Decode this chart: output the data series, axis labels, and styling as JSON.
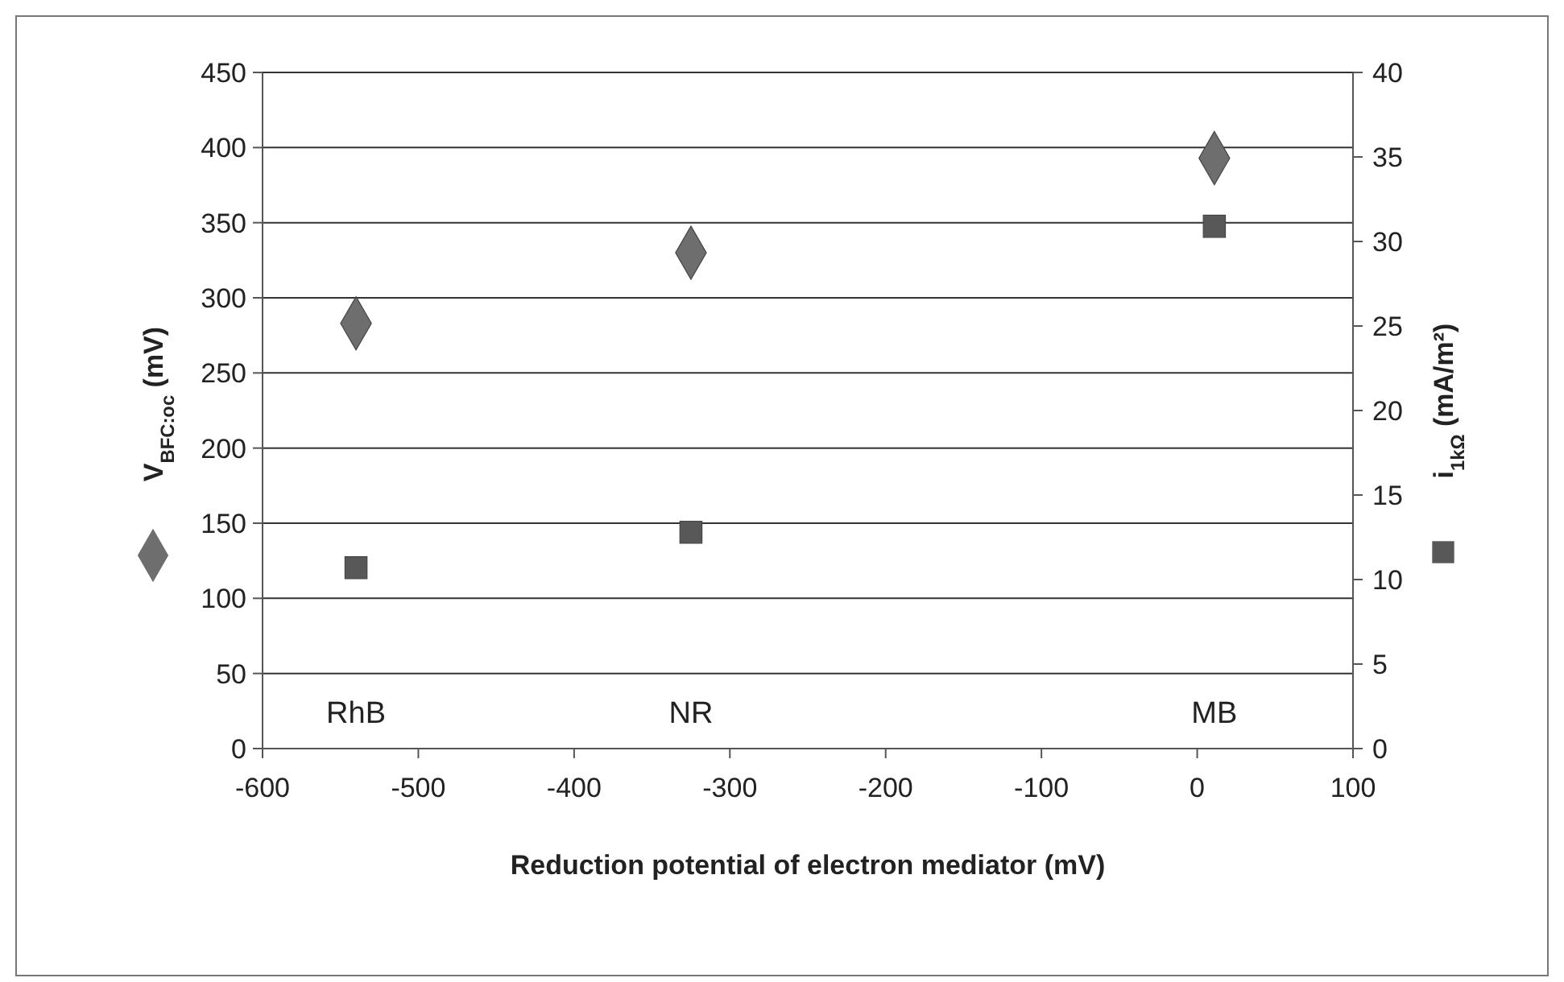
{
  "chart_data": {
    "type": "scatter",
    "xlabel": "Reduction potential of electron mediator (mV)",
    "ylabel": "V$_{BFC:oc}$ (mV)",
    "y2label": "i$_{1kΩ}$ (mA/m²)",
    "xlim": [
      -600,
      100
    ],
    "xticks": [
      -600,
      -500,
      -400,
      -300,
      -200,
      -100,
      0,
      100
    ],
    "ylim": [
      0,
      450
    ],
    "yticks": [
      0,
      50,
      100,
      150,
      200,
      250,
      300,
      350,
      400,
      450
    ],
    "y2lim": [
      0,
      40
    ],
    "y2ticks": [
      0,
      5,
      10,
      15,
      20,
      25,
      30,
      35,
      40
    ],
    "grid": "y",
    "series": [
      {
        "x": [
          -540,
          -325,
          11
        ],
        "values": [
          283,
          330,
          393
        ],
        "color": "#6e6e6e",
        "marker": "diamond"
      },
      {
        "x": [
          -540,
          -325,
          11
        ],
        "values": [
          10.7,
          12.8,
          30.9
        ],
        "color": "#585858",
        "marker": "square",
        "axis": "y2"
      }
    ],
    "annotations": [
      "RhB",
      "NR",
      "MB"
    ]
  }
}
